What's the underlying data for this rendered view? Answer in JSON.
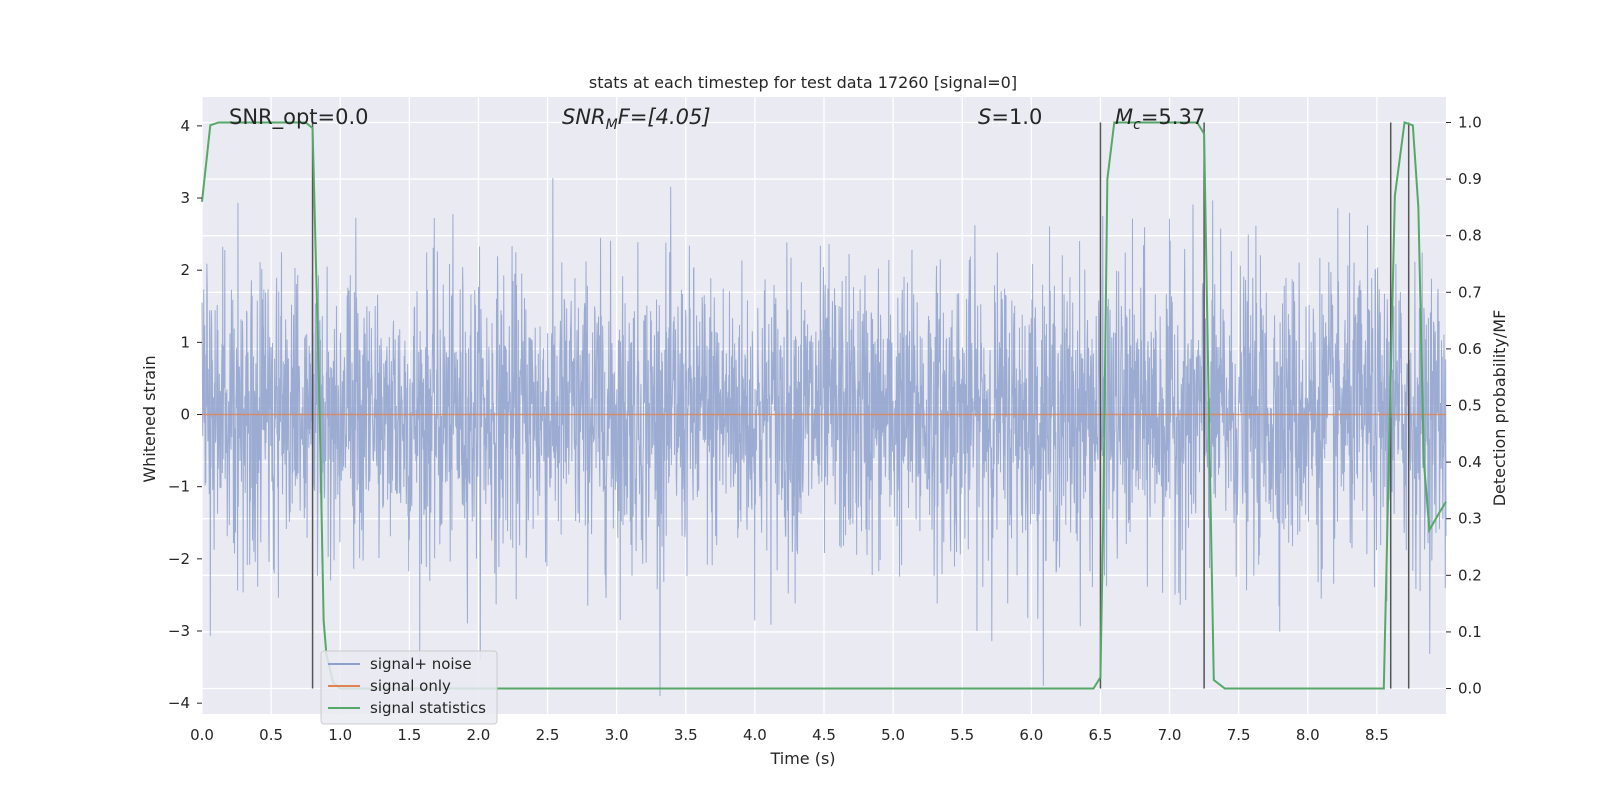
{
  "chart_data": {
    "type": "line",
    "title": "stats at each timestep for test data 17260 [signal=0]",
    "xlabel": "Time (s)",
    "ylabel": "Whitened strain",
    "y2label": "Detection probability/MF",
    "xlim": [
      0.0,
      9.0
    ],
    "ylim": [
      -4.15,
      4.4
    ],
    "y2lim": [
      -0.045,
      1.045
    ],
    "x_ticks": [
      "0.0",
      "0.5",
      "1.0",
      "1.5",
      "2.0",
      "2.5",
      "3.0",
      "3.5",
      "4.0",
      "4.5",
      "5.0",
      "5.5",
      "6.0",
      "6.5",
      "7.0",
      "7.5",
      "8.0",
      "8.5"
    ],
    "y_ticks": [
      "4",
      "3",
      "2",
      "1",
      "0",
      "−1",
      "−2",
      "−3",
      "−4"
    ],
    "y2_ticks": [
      "1.0",
      "0.9",
      "0.8",
      "0.7",
      "0.6",
      "0.5",
      "0.4",
      "0.3",
      "0.2",
      "0.1",
      "0.0"
    ],
    "grid": true,
    "legend_position": "lower-left",
    "annotations": {
      "snr_opt": "SNR_opt=0.0",
      "snr_mf_base": "SNR",
      "snr_mf_sub": "M",
      "snr_mf_rest": "F=[4.05]",
      "s_var": "S",
      "s_rest": "=1.0",
      "mc_var": "M",
      "mc_sub": "c",
      "mc_rest": "=5.37"
    },
    "series": [
      {
        "name": "signal+ noise",
        "color": "#8da0cb",
        "axis": "left",
        "description_free": true,
        "duration": 9.0,
        "amplitude_sigma": 1.0
      },
      {
        "name": "signal only",
        "color": "#dd8452",
        "axis": "left",
        "x": [
          0.0,
          9.0
        ],
        "y": [
          0.0,
          0.0
        ]
      },
      {
        "name": "signal statistics",
        "color": "#55a868",
        "axis": "right",
        "x": [
          0.0,
          0.06,
          0.12,
          0.2,
          0.5,
          0.75,
          0.8,
          0.85,
          0.88,
          0.9,
          0.95,
          1.0,
          2.0,
          3.0,
          4.0,
          5.0,
          6.0,
          6.45,
          6.5,
          6.52,
          6.55,
          6.6,
          6.7,
          7.0,
          7.2,
          7.25,
          7.28,
          7.32,
          7.4,
          8.0,
          8.55,
          8.6,
          8.63,
          8.7,
          8.76,
          8.8,
          8.84,
          8.88,
          8.95,
          9.0
        ],
        "y": [
          0.86,
          0.995,
          1.0,
          1.0,
          1.0,
          1.0,
          0.99,
          0.5,
          0.12,
          0.06,
          0.01,
          0.0,
          0.0,
          0.0,
          0.0,
          0.0,
          0.0,
          0.0,
          0.02,
          0.3,
          0.9,
          1.0,
          1.0,
          1.0,
          1.0,
          0.98,
          0.55,
          0.015,
          0.0,
          0.0,
          0.0,
          0.55,
          0.87,
          1.0,
          0.995,
          0.85,
          0.4,
          0.28,
          0.31,
          0.33
        ]
      }
    ],
    "vlines": [
      0.8,
      6.5,
      7.25,
      8.6,
      8.73
    ]
  }
}
